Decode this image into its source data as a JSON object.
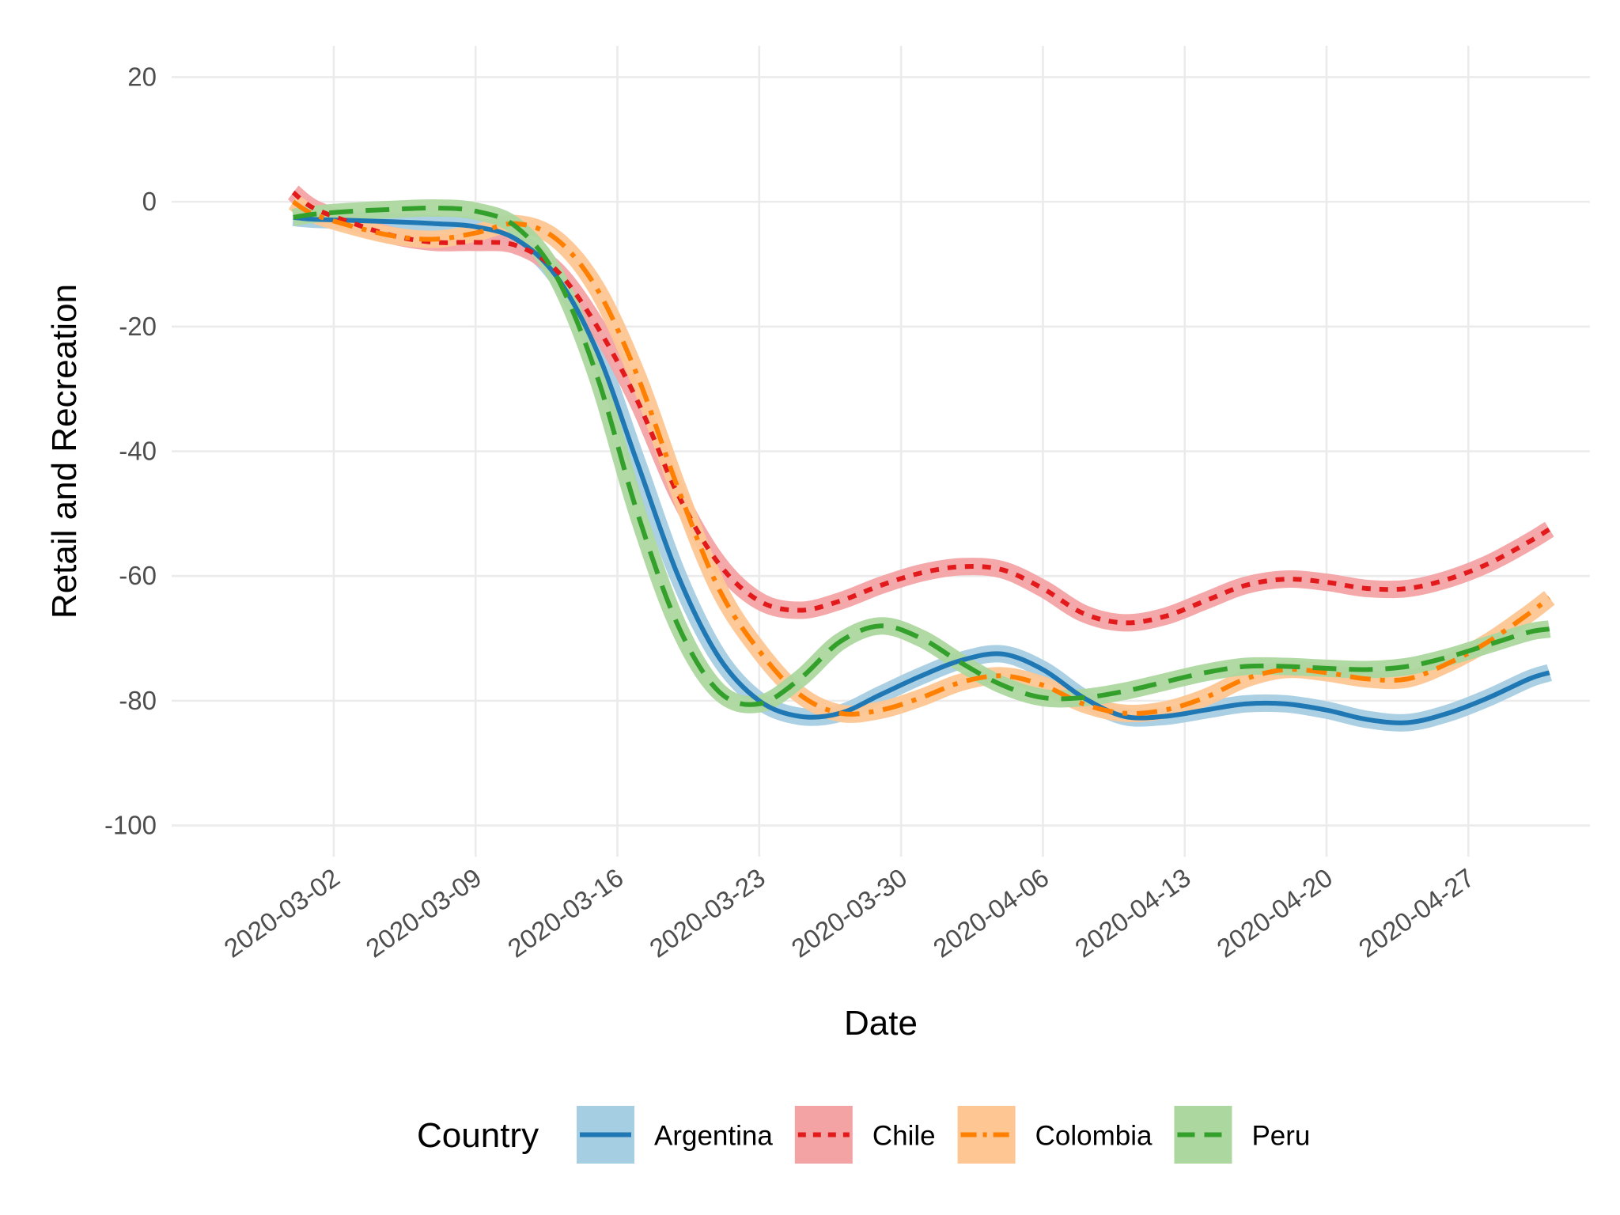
{
  "chart_data": {
    "type": "line",
    "xlabel": "Date",
    "ylabel": "Retail and Recreation",
    "ylim": [
      -105,
      25
    ],
    "y_ticks": [
      20,
      0,
      -20,
      -40,
      -60,
      -80,
      -100
    ],
    "x_ticks": [
      "2020-03-02",
      "2020-03-09",
      "2020-03-16",
      "2020-03-23",
      "2020-03-30",
      "2020-04-06",
      "2020-04-13",
      "2020-04-20",
      "2020-04-27"
    ],
    "xlim": [
      "2020-02-23",
      "2020-05-03"
    ],
    "grid": true,
    "legend": {
      "title": "Country",
      "position": "bottom"
    },
    "series": [
      {
        "name": "Argentina",
        "color": "#1f78b4",
        "band_color": "#a6cee3",
        "linestyle": "solid",
        "points": [
          [
            "2020-02-29",
            -2.5
          ],
          [
            "2020-03-01",
            -2.8
          ],
          [
            "2020-03-03",
            -3.0
          ],
          [
            "2020-03-05",
            -3.2
          ],
          [
            "2020-03-07",
            -3.5
          ],
          [
            "2020-03-09",
            -4.0
          ],
          [
            "2020-03-11",
            -6.0
          ],
          [
            "2020-03-13",
            -12.0
          ],
          [
            "2020-03-15",
            -24.0
          ],
          [
            "2020-03-17",
            -42.0
          ],
          [
            "2020-03-19",
            -60.0
          ],
          [
            "2020-03-21",
            -73.0
          ],
          [
            "2020-03-23",
            -80.0
          ],
          [
            "2020-03-25",
            -82.5
          ],
          [
            "2020-03-27",
            -82.0
          ],
          [
            "2020-03-29",
            -79.0
          ],
          [
            "2020-03-31",
            -76.0
          ],
          [
            "2020-04-02",
            -73.5
          ],
          [
            "2020-04-04",
            -72.5
          ],
          [
            "2020-04-06",
            -75.0
          ],
          [
            "2020-04-08",
            -79.5
          ],
          [
            "2020-04-10",
            -82.5
          ],
          [
            "2020-04-12",
            -82.5
          ],
          [
            "2020-04-14",
            -81.5
          ],
          [
            "2020-04-16",
            -80.5
          ],
          [
            "2020-04-18",
            -80.5
          ],
          [
            "2020-04-20",
            -81.5
          ],
          [
            "2020-04-22",
            -83.0
          ],
          [
            "2020-04-24",
            -83.5
          ],
          [
            "2020-04-26",
            -82.0
          ],
          [
            "2020-04-28",
            -79.5
          ],
          [
            "2020-04-30",
            -76.5
          ],
          [
            "2020-05-01",
            -75.5
          ]
        ]
      },
      {
        "name": "Chile",
        "color": "#e31a1c",
        "band_color": "#f4a3a5",
        "linestyle": "dotted",
        "points": [
          [
            "2020-02-29",
            1.5
          ],
          [
            "2020-03-01",
            -1.0
          ],
          [
            "2020-03-03",
            -3.5
          ],
          [
            "2020-03-05",
            -5.5
          ],
          [
            "2020-03-07",
            -6.5
          ],
          [
            "2020-03-09",
            -6.5
          ],
          [
            "2020-03-11",
            -7.0
          ],
          [
            "2020-03-13",
            -11.0
          ],
          [
            "2020-03-15",
            -20.0
          ],
          [
            "2020-03-17",
            -32.0
          ],
          [
            "2020-03-19",
            -47.0
          ],
          [
            "2020-03-21",
            -58.0
          ],
          [
            "2020-03-23",
            -64.0
          ],
          [
            "2020-03-25",
            -65.5
          ],
          [
            "2020-03-27",
            -64.0
          ],
          [
            "2020-03-29",
            -61.5
          ],
          [
            "2020-03-31",
            -59.5
          ],
          [
            "2020-04-02",
            -58.5
          ],
          [
            "2020-04-04",
            -59.0
          ],
          [
            "2020-04-06",
            -62.0
          ],
          [
            "2020-04-08",
            -66.0
          ],
          [
            "2020-04-10",
            -67.5
          ],
          [
            "2020-04-12",
            -66.5
          ],
          [
            "2020-04-14",
            -64.0
          ],
          [
            "2020-04-16",
            -61.5
          ],
          [
            "2020-04-18",
            -60.5
          ],
          [
            "2020-04-20",
            -61.0
          ],
          [
            "2020-04-22",
            -62.0
          ],
          [
            "2020-04-24",
            -62.0
          ],
          [
            "2020-04-26",
            -60.5
          ],
          [
            "2020-04-28",
            -58.0
          ],
          [
            "2020-04-30",
            -54.5
          ],
          [
            "2020-05-01",
            -52.5
          ]
        ]
      },
      {
        "name": "Colombia",
        "color": "#ff7f00",
        "band_color": "#fdc692",
        "linestyle": "dashdot",
        "points": [
          [
            "2020-02-29",
            0.0
          ],
          [
            "2020-03-01",
            -2.0
          ],
          [
            "2020-03-03",
            -4.0
          ],
          [
            "2020-03-05",
            -5.5
          ],
          [
            "2020-03-07",
            -6.0
          ],
          [
            "2020-03-09",
            -5.0
          ],
          [
            "2020-03-11",
            -3.5
          ],
          [
            "2020-03-13",
            -6.0
          ],
          [
            "2020-03-15",
            -14.0
          ],
          [
            "2020-03-17",
            -28.0
          ],
          [
            "2020-03-19",
            -46.0
          ],
          [
            "2020-03-21",
            -62.0
          ],
          [
            "2020-03-23",
            -72.0
          ],
          [
            "2020-03-25",
            -79.0
          ],
          [
            "2020-03-27",
            -82.0
          ],
          [
            "2020-03-29",
            -81.5
          ],
          [
            "2020-03-31",
            -79.5
          ],
          [
            "2020-04-02",
            -77.0
          ],
          [
            "2020-04-04",
            -76.0
          ],
          [
            "2020-04-06",
            -77.5
          ],
          [
            "2020-04-08",
            -80.5
          ],
          [
            "2020-04-10",
            -82.0
          ],
          [
            "2020-04-12",
            -81.5
          ],
          [
            "2020-04-14",
            -79.5
          ],
          [
            "2020-04-16",
            -76.5
          ],
          [
            "2020-04-18",
            -75.0
          ],
          [
            "2020-04-20",
            -75.5
          ],
          [
            "2020-04-22",
            -76.5
          ],
          [
            "2020-04-24",
            -76.5
          ],
          [
            "2020-04-26",
            -74.0
          ],
          [
            "2020-04-28",
            -70.5
          ],
          [
            "2020-04-30",
            -66.0
          ],
          [
            "2020-05-01",
            -63.5
          ]
        ]
      },
      {
        "name": "Peru",
        "color": "#33a02c",
        "band_color": "#acd79f",
        "linestyle": "dashed",
        "points": [
          [
            "2020-02-29",
            -2.5
          ],
          [
            "2020-03-01",
            -2.0
          ],
          [
            "2020-03-03",
            -1.5
          ],
          [
            "2020-03-05",
            -1.2
          ],
          [
            "2020-03-07",
            -1.0
          ],
          [
            "2020-03-09",
            -1.5
          ],
          [
            "2020-03-11",
            -4.0
          ],
          [
            "2020-03-13",
            -12.0
          ],
          [
            "2020-03-15",
            -28.0
          ],
          [
            "2020-03-17",
            -50.0
          ],
          [
            "2020-03-19",
            -68.0
          ],
          [
            "2020-03-21",
            -78.5
          ],
          [
            "2020-03-23",
            -80.5
          ],
          [
            "2020-03-25",
            -76.5
          ],
          [
            "2020-03-27",
            -70.5
          ],
          [
            "2020-03-29",
            -68.0
          ],
          [
            "2020-03-31",
            -70.0
          ],
          [
            "2020-04-02",
            -74.0
          ],
          [
            "2020-04-04",
            -77.5
          ],
          [
            "2020-04-06",
            -79.5
          ],
          [
            "2020-04-08",
            -79.5
          ],
          [
            "2020-04-10",
            -78.5
          ],
          [
            "2020-04-12",
            -77.0
          ],
          [
            "2020-04-14",
            -75.5
          ],
          [
            "2020-04-16",
            -74.5
          ],
          [
            "2020-04-18",
            -74.5
          ],
          [
            "2020-04-20",
            -74.8
          ],
          [
            "2020-04-22",
            -75.0
          ],
          [
            "2020-04-24",
            -74.5
          ],
          [
            "2020-04-26",
            -73.0
          ],
          [
            "2020-04-28",
            -71.0
          ],
          [
            "2020-04-30",
            -69.0
          ],
          [
            "2020-05-01",
            -68.5
          ]
        ]
      }
    ]
  }
}
